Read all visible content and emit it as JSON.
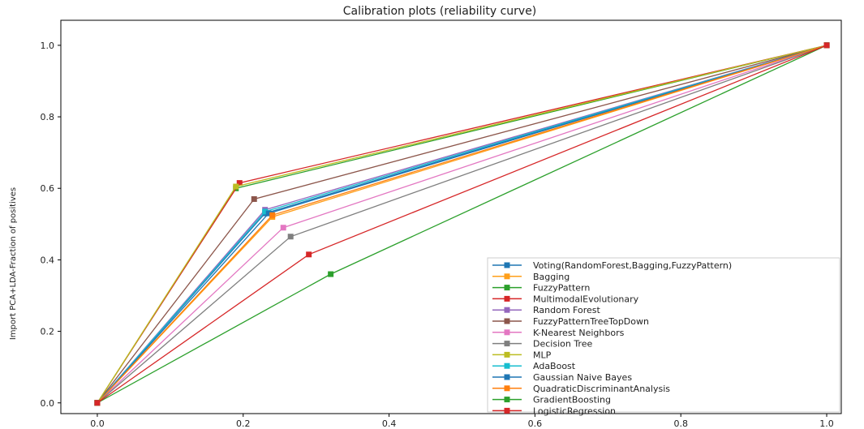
{
  "chart_data": {
    "type": "line",
    "title": "Calibration plots  (reliability curve)",
    "xlabel": "",
    "ylabel": "Import PCA+LDA-Fraction of positives",
    "xlim": [
      -0.05,
      1.02
    ],
    "ylim": [
      -0.03,
      1.07
    ],
    "x_ticks": [
      "0.0",
      "0.2",
      "0.4",
      "0.6",
      "0.8",
      "1.0"
    ],
    "y_ticks": [
      "0.0",
      "0.2",
      "0.4",
      "0.6",
      "0.8",
      "1.0"
    ],
    "legend_position": "lower right",
    "grid": false,
    "series": [
      {
        "name": "Voting(RandomForest,Bagging,FuzzyPattern)",
        "color": "#1f77b4",
        "x": [
          0.0,
          0.23,
          1.0
        ],
        "y": [
          0.0,
          0.53,
          1.0
        ]
      },
      {
        "name": "Bagging",
        "color": "#ff9f1a",
        "x": [
          0.0,
          0.24,
          1.0
        ],
        "y": [
          0.0,
          0.52,
          1.0
        ]
      },
      {
        "name": "FuzzyPattern",
        "color": "#2ca02c",
        "x": [
          0.0,
          0.19,
          1.0
        ],
        "y": [
          0.0,
          0.6,
          1.0
        ]
      },
      {
        "name": "MultimodalEvolutionary",
        "color": "#d62728",
        "x": [
          0.0,
          0.195,
          1.0
        ],
        "y": [
          0.0,
          0.615,
          1.0
        ]
      },
      {
        "name": "Random Forest",
        "color": "#9467bd",
        "x": [
          0.0,
          0.23,
          1.0
        ],
        "y": [
          0.0,
          0.54,
          1.0
        ]
      },
      {
        "name": "FuzzyPatternTreeTopDown",
        "color": "#8c564b",
        "x": [
          0.0,
          0.215,
          1.0
        ],
        "y": [
          0.0,
          0.57,
          1.0
        ]
      },
      {
        "name": "K-Nearest Neighbors",
        "color": "#e377c2",
        "x": [
          0.0,
          0.255,
          1.0
        ],
        "y": [
          0.0,
          0.49,
          1.0
        ]
      },
      {
        "name": "Decision Tree",
        "color": "#7f7f7f",
        "x": [
          0.0,
          0.265,
          1.0
        ],
        "y": [
          0.0,
          0.465,
          1.0
        ]
      },
      {
        "name": "MLP",
        "color": "#bcbd22",
        "x": [
          0.0,
          0.19,
          1.0
        ],
        "y": [
          0.0,
          0.605,
          1.0
        ]
      },
      {
        "name": "AdaBoost",
        "color": "#17becf",
        "x": [
          0.0,
          0.23,
          1.0
        ],
        "y": [
          0.0,
          0.535,
          1.0
        ]
      },
      {
        "name": "Gaussian Naive Bayes",
        "color": "#1f77b4",
        "x": [
          0.0,
          0.235,
          1.0
        ],
        "y": [
          0.0,
          0.53,
          1.0
        ]
      },
      {
        "name": "QuadraticDiscriminantAnalysis",
        "color": "#ff7f0e",
        "x": [
          0.0,
          0.24,
          1.0
        ],
        "y": [
          0.0,
          0.525,
          1.0
        ]
      },
      {
        "name": "GradientBoosting",
        "color": "#2ca02c",
        "x": [
          0.0,
          0.32,
          1.0
        ],
        "y": [
          0.0,
          0.36,
          1.0
        ]
      },
      {
        "name": "LogisticRegression",
        "color": "#d62728",
        "x": [
          0.0,
          0.29,
          1.0
        ],
        "y": [
          0.0,
          0.415,
          1.0
        ]
      }
    ]
  }
}
